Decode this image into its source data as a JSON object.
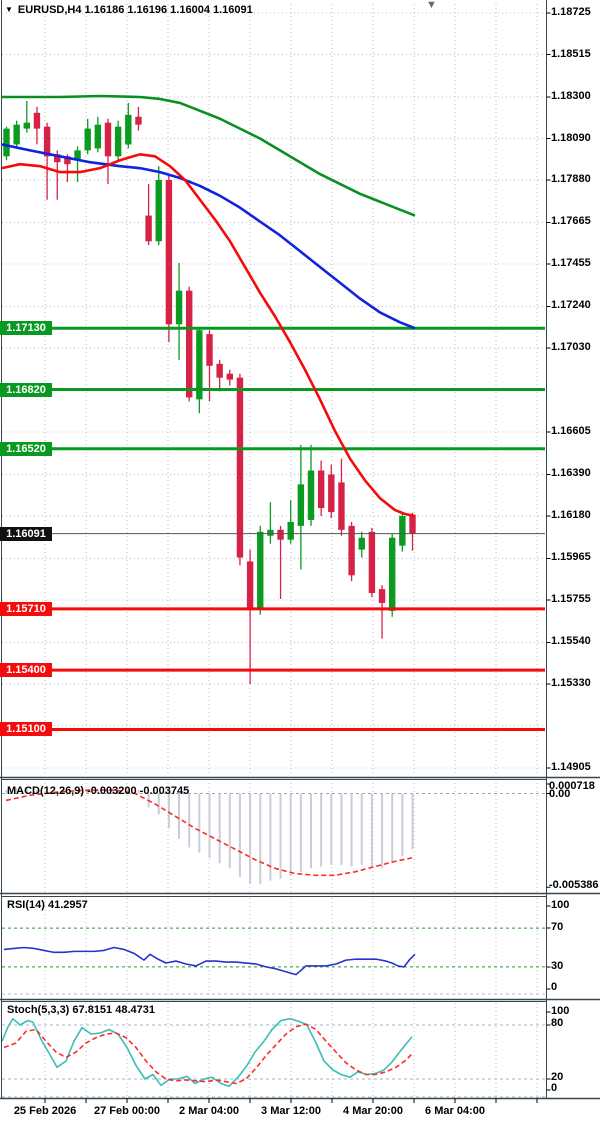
{
  "header": {
    "dropdown_icon": "▼",
    "title": "EURUSD,H4 1.16186 1.16196 1.16004 1.16091"
  },
  "shift_marker_icon": "▼",
  "panels": {
    "macd": {
      "label": "MACD(12,26,9) -0.003200 -0.003745",
      "axis_labels": [
        "0.000718",
        "0.00",
        "-0.005386"
      ]
    },
    "rsi": {
      "label": "RSI(14) 41.2957",
      "axis_labels": [
        "100",
        "70",
        "30",
        "0"
      ]
    },
    "stoch": {
      "label": "Stoch(5,3,3) 67.8151 48.4731",
      "axis_labels": [
        "100",
        "80",
        "20",
        "0"
      ]
    }
  },
  "chart_data": {
    "type": "candlestick",
    "symbol": "EURUSD",
    "timeframe": "H4",
    "title": "EURUSD,H4 1.16186 1.16196 1.16004 1.16091",
    "last_bar": {
      "open": 1.16186,
      "high": 1.16196,
      "low": 1.16004,
      "close": 1.16091
    },
    "current_price": 1.16091,
    "price_axis_ticks": [
      1.18725,
      1.18515,
      1.183,
      1.1809,
      1.1788,
      1.17665,
      1.17455,
      1.1724,
      1.1703,
      1.16605,
      1.1639,
      1.1618,
      1.15965,
      1.15755,
      1.1554,
      1.1533,
      1.14905
    ],
    "grid_rows": [
      1.18725,
      1.18515,
      1.183,
      1.1809,
      1.1788,
      1.17665,
      1.17455,
      1.1724,
      1.1703,
      1.16815,
      1.16605,
      1.1639,
      1.1618,
      1.15965,
      1.15755,
      1.1554,
      1.1533,
      1.1512,
      1.14905
    ],
    "hlines": [
      {
        "price": 1.1713,
        "kind": "resistance",
        "color": "#089a20"
      },
      {
        "price": 1.1682,
        "kind": "resistance",
        "color": "#089a20"
      },
      {
        "price": 1.1652,
        "kind": "resistance",
        "color": "#089a20"
      },
      {
        "price": 1.1571,
        "kind": "support",
        "color": "#f40b0b"
      },
      {
        "price": 1.154,
        "kind": "support",
        "color": "#f40b0b"
      },
      {
        "price": 1.151,
        "kind": "support",
        "color": "#f40b0b"
      }
    ],
    "candles": [
      [
        1.18,
        1.1815,
        1.1798,
        1.1814
      ],
      [
        1.1806,
        1.1818,
        1.1804,
        1.1816
      ],
      [
        1.1814,
        1.1828,
        1.1812,
        1.1817
      ],
      [
        1.1822,
        1.1825,
        1.1806,
        1.1814
      ],
      [
        1.1815,
        1.1817,
        1.1778,
        1.18
      ],
      [
        1.1801,
        1.1803,
        1.1778,
        1.1797
      ],
      [
        1.18,
        1.1801,
        1.1787,
        1.1796
      ],
      [
        1.1798,
        1.1805,
        1.1787,
        1.1803
      ],
      [
        1.1803,
        1.1819,
        1.1801,
        1.1814
      ],
      [
        1.1804,
        1.182,
        1.1802,
        1.1816
      ],
      [
        1.1817,
        1.1819,
        1.1786,
        1.18
      ],
      [
        1.18,
        1.1818,
        1.1798,
        1.1815
      ],
      [
        1.1806,
        1.1827,
        1.1804,
        1.1821
      ],
      [
        1.182,
        1.1825,
        1.1813,
        1.1816
      ],
      [
        1.177,
        1.1786,
        1.1755,
        1.1757
      ],
      [
        1.1757,
        1.1795,
        1.1755,
        1.1788
      ],
      [
        1.1788,
        1.179,
        1.1706,
        1.1715
      ],
      [
        1.1715,
        1.1746,
        1.1697,
        1.1732
      ],
      [
        1.1732,
        1.1734,
        1.1676,
        1.1678
      ],
      [
        1.1677,
        1.1713,
        1.167,
        1.1712
      ],
      [
        1.171,
        1.1712,
        1.1676,
        1.1694
      ],
      [
        1.1695,
        1.1697,
        1.1681,
        1.1688
      ],
      [
        1.169,
        1.1692,
        1.1684,
        1.1687
      ],
      [
        1.1688,
        1.169,
        1.1593,
        1.1597
      ],
      [
        1.1595,
        1.1601,
        1.1533,
        1.1571
      ],
      [
        1.1571,
        1.1613,
        1.1568,
        1.161
      ],
      [
        1.1608,
        1.1625,
        1.1604,
        1.1611
      ],
      [
        1.1611,
        1.1613,
        1.1576,
        1.1606
      ],
      [
        1.1606,
        1.1626,
        1.1604,
        1.1615
      ],
      [
        1.1613,
        1.1654,
        1.1591,
        1.1634
      ],
      [
        1.1616,
        1.1654,
        1.1613,
        1.1641
      ],
      [
        1.1641,
        1.1646,
        1.1618,
        1.1622
      ],
      [
        1.1639,
        1.1644,
        1.1617,
        1.162
      ],
      [
        1.1635,
        1.1647,
        1.1608,
        1.1611
      ],
      [
        1.1613,
        1.1615,
        1.1585,
        1.1588
      ],
      [
        1.1601,
        1.161,
        1.1597,
        1.1607
      ],
      [
        1.161,
        1.1612,
        1.1577,
        1.1579
      ],
      [
        1.1581,
        1.1583,
        1.1556,
        1.1574
      ],
      [
        1.157,
        1.1609,
        1.1567,
        1.1607
      ],
      [
        1.1603,
        1.1619,
        1.16,
        1.1618
      ],
      [
        1.16186,
        1.16196,
        1.16004,
        1.16091
      ]
    ],
    "ma_green": [
      [
        2,
        1.183
      ],
      [
        60,
        1.183
      ],
      [
        100,
        1.18305
      ],
      [
        140,
        1.183
      ],
      [
        160,
        1.1829
      ],
      [
        180,
        1.1827
      ],
      [
        200,
        1.1823
      ],
      [
        220,
        1.1819
      ],
      [
        240,
        1.1814
      ],
      [
        260,
        1.1809
      ],
      [
        280,
        1.1803
      ],
      [
        300,
        1.1797
      ],
      [
        320,
        1.1791
      ],
      [
        340,
        1.1786
      ],
      [
        360,
        1.1781
      ],
      [
        380,
        1.1777
      ],
      [
        400,
        1.1773
      ],
      [
        415,
        1.177
      ]
    ],
    "ma_blue": [
      [
        2,
        1.1806
      ],
      [
        30,
        1.1803
      ],
      [
        60,
        1.18
      ],
      [
        90,
        1.1797
      ],
      [
        120,
        1.1795
      ],
      [
        140,
        1.1794
      ],
      [
        160,
        1.1792
      ],
      [
        180,
        1.1789
      ],
      [
        200,
        1.1785
      ],
      [
        220,
        1.178
      ],
      [
        240,
        1.1774
      ],
      [
        260,
        1.1767
      ],
      [
        280,
        1.176
      ],
      [
        300,
        1.1752
      ],
      [
        320,
        1.1744
      ],
      [
        340,
        1.1736
      ],
      [
        360,
        1.1728
      ],
      [
        380,
        1.1721
      ],
      [
        400,
        1.1716
      ],
      [
        415,
        1.1713
      ]
    ],
    "ma_red": [
      [
        2,
        1.1794
      ],
      [
        20,
        1.1796
      ],
      [
        40,
        1.1795
      ],
      [
        60,
        1.1792
      ],
      [
        80,
        1.1792
      ],
      [
        100,
        1.1794
      ],
      [
        120,
        1.1798
      ],
      [
        140,
        1.1801
      ],
      [
        155,
        1.18
      ],
      [
        170,
        1.1795
      ],
      [
        185,
        1.1788
      ],
      [
        200,
        1.1778
      ],
      [
        215,
        1.1768
      ],
      [
        230,
        1.1757
      ],
      [
        245,
        1.1744
      ],
      [
        260,
        1.1731
      ],
      [
        275,
        1.1719
      ],
      [
        290,
        1.1706
      ],
      [
        305,
        1.1692
      ],
      [
        320,
        1.1677
      ],
      [
        335,
        1.1661
      ],
      [
        350,
        1.1647
      ],
      [
        365,
        1.1636
      ],
      [
        380,
        1.1627
      ],
      [
        395,
        1.1621
      ],
      [
        405,
        1.1619
      ],
      [
        415,
        1.1618
      ]
    ],
    "macd": {
      "params": "12,26,9",
      "current_main": -0.0032,
      "current_signal": -0.003745,
      "scale_max": 0.000718,
      "scale_min": -0.005386,
      "histogram": [
        0.0002,
        0.0003,
        0.0003,
        0.0002,
        0.0001,
        0.0,
        -0.0001,
        0.0,
        0.0001,
        0.0002,
        0.0002,
        0.0002,
        0.0003,
        0.0002,
        -0.0008,
        -0.0012,
        -0.002,
        -0.0026,
        -0.0031,
        -0.0034,
        -0.0037,
        -0.004,
        -0.0043,
        -0.0048,
        -0.0052,
        -0.0052,
        -0.005,
        -0.0049,
        -0.0047,
        -0.0045,
        -0.0043,
        -0.0042,
        -0.0041,
        -0.0041,
        -0.0042,
        -0.0041,
        -0.0042,
        -0.0043,
        -0.004,
        -0.0036,
        -0.0032
      ],
      "signal": [
        [
          6,
          -0.0004
        ],
        [
          30,
          -0.0001
        ],
        [
          60,
          0.0001
        ],
        [
          90,
          0.0002
        ],
        [
          115,
          0.0002
        ],
        [
          135,
          0.0
        ],
        [
          155,
          -0.0006
        ],
        [
          175,
          -0.0013
        ],
        [
          195,
          -0.002
        ],
        [
          215,
          -0.0026
        ],
        [
          235,
          -0.0032
        ],
        [
          255,
          -0.0038
        ],
        [
          275,
          -0.0043
        ],
        [
          295,
          -0.0046
        ],
        [
          315,
          -0.0047
        ],
        [
          335,
          -0.0047
        ],
        [
          355,
          -0.0045
        ],
        [
          375,
          -0.0042
        ],
        [
          395,
          -0.0039
        ],
        [
          412,
          -0.0037
        ]
      ]
    },
    "rsi": {
      "period": 14,
      "current": 41.2957,
      "levels": [
        70,
        30
      ],
      "points": [
        [
          4,
          48
        ],
        [
          14,
          49
        ],
        [
          24,
          50
        ],
        [
          34,
          49
        ],
        [
          44,
          47
        ],
        [
          54,
          45
        ],
        [
          64,
          45
        ],
        [
          74,
          46
        ],
        [
          84,
          46
        ],
        [
          94,
          46
        ],
        [
          104,
          47
        ],
        [
          114,
          50
        ],
        [
          124,
          48
        ],
        [
          134,
          44
        ],
        [
          144,
          37
        ],
        [
          150,
          43
        ],
        [
          158,
          38
        ],
        [
          166,
          34
        ],
        [
          176,
          36
        ],
        [
          186,
          33
        ],
        [
          196,
          31
        ],
        [
          206,
          36
        ],
        [
          216,
          36
        ],
        [
          226,
          35
        ],
        [
          236,
          35
        ],
        [
          246,
          34
        ],
        [
          256,
          33
        ],
        [
          266,
          30
        ],
        [
          276,
          28
        ],
        [
          286,
          25
        ],
        [
          296,
          22
        ],
        [
          306,
          31
        ],
        [
          316,
          31
        ],
        [
          326,
          31
        ],
        [
          336,
          33
        ],
        [
          346,
          37
        ],
        [
          356,
          38
        ],
        [
          366,
          38
        ],
        [
          376,
          38
        ],
        [
          386,
          36
        ],
        [
          392,
          34
        ],
        [
          398,
          31
        ],
        [
          404,
          30
        ],
        [
          410,
          38
        ],
        [
          415,
          43
        ]
      ]
    },
    "stoch": {
      "params": "5,3,3",
      "current_k": 67.8151,
      "current_d": 48.4731,
      "levels": [
        80,
        20
      ],
      "k": [
        [
          2,
          62
        ],
        [
          8,
          78
        ],
        [
          13,
          87
        ],
        [
          20,
          80
        ],
        [
          28,
          85
        ],
        [
          33,
          83
        ],
        [
          42,
          62
        ],
        [
          51,
          45
        ],
        [
          57,
          33
        ],
        [
          66,
          40
        ],
        [
          74,
          62
        ],
        [
          82,
          77
        ],
        [
          91,
          70
        ],
        [
          100,
          71
        ],
        [
          109,
          75
        ],
        [
          118,
          70
        ],
        [
          127,
          55
        ],
        [
          136,
          35
        ],
        [
          145,
          20
        ],
        [
          153,
          25
        ],
        [
          161,
          13
        ],
        [
          170,
          20
        ],
        [
          178,
          20
        ],
        [
          187,
          23
        ],
        [
          195,
          15
        ],
        [
          204,
          20
        ],
        [
          212,
          22
        ],
        [
          221,
          15
        ],
        [
          229,
          12
        ],
        [
          238,
          22
        ],
        [
          247,
          35
        ],
        [
          255,
          50
        ],
        [
          264,
          62
        ],
        [
          272,
          75
        ],
        [
          281,
          85
        ],
        [
          290,
          87
        ],
        [
          299,
          84
        ],
        [
          307,
          80
        ],
        [
          316,
          60
        ],
        [
          324,
          40
        ],
        [
          333,
          30
        ],
        [
          341,
          25
        ],
        [
          350,
          22
        ],
        [
          358,
          28
        ],
        [
          367,
          25
        ],
        [
          375,
          26
        ],
        [
          384,
          30
        ],
        [
          392,
          39
        ],
        [
          401,
          52
        ],
        [
          412,
          67
        ]
      ],
      "d": [
        [
          4,
          55
        ],
        [
          16,
          60
        ],
        [
          26,
          73
        ],
        [
          36,
          75
        ],
        [
          46,
          62
        ],
        [
          56,
          50
        ],
        [
          66,
          44
        ],
        [
          76,
          50
        ],
        [
          86,
          60
        ],
        [
          96,
          66
        ],
        [
          106,
          70
        ],
        [
          116,
          71
        ],
        [
          126,
          66
        ],
        [
          136,
          55
        ],
        [
          146,
          40
        ],
        [
          156,
          28
        ],
        [
          166,
          20
        ],
        [
          176,
          18
        ],
        [
          186,
          19
        ],
        [
          196,
          18
        ],
        [
          206,
          17
        ],
        [
          216,
          19
        ],
        [
          226,
          17
        ],
        [
          236,
          15
        ],
        [
          246,
          20
        ],
        [
          256,
          32
        ],
        [
          266,
          46
        ],
        [
          276,
          58
        ],
        [
          286,
          70
        ],
        [
          296,
          78
        ],
        [
          306,
          81
        ],
        [
          316,
          75
        ],
        [
          326,
          62
        ],
        [
          336,
          50
        ],
        [
          346,
          38
        ],
        [
          356,
          30
        ],
        [
          366,
          25
        ],
        [
          376,
          25
        ],
        [
          386,
          28
        ],
        [
          396,
          33
        ],
        [
          406,
          41
        ],
        [
          412,
          48
        ]
      ]
    },
    "time_labels": [
      "25 Feb 2026",
      "27 Feb 00:00",
      "2 Mar 04:00",
      "3 Mar 12:00",
      "4 Mar 20:00",
      "6 Mar 04:00"
    ],
    "colors": {
      "bull": "#0b9b20",
      "bear": "#d62246",
      "ma_green": "#0a8f22",
      "ma_blue": "#1024dc",
      "ma_red": "#f40b0b",
      "sr_green": "#089a20",
      "sr_red": "#f40b0b",
      "macd_hist": "#c9ccda",
      "signal_red": "#ff2a2a",
      "rsi_blue": "#2733cc",
      "rsi_level": "#2a9b2a",
      "stoch_k": "#3bbfb4",
      "stoch_d": "#ff2a2a",
      "grid": "#b3bccf",
      "border": "#37474f",
      "current_line": "#555555",
      "current_badge": "#111111"
    }
  }
}
